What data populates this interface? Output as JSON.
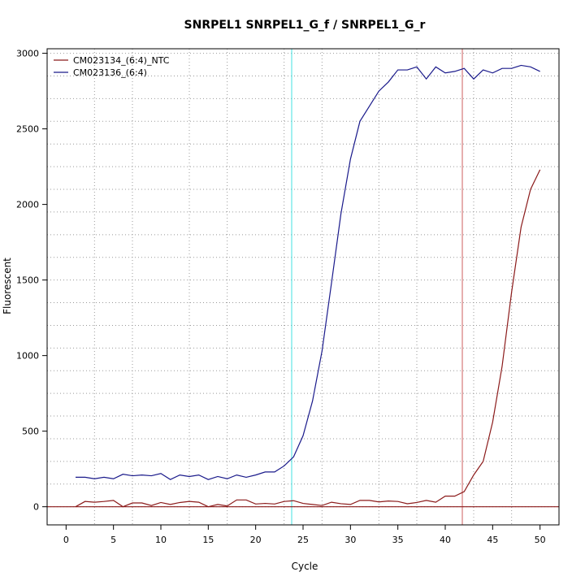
{
  "chart_data": {
    "type": "line",
    "title": "SNRPEL1  SNRPEL1_G_f / SNRPEL1_G_r",
    "xlabel": "Cycle",
    "ylabel": "Fluorescent",
    "xlim": [
      -2,
      52
    ],
    "ylim": [
      -120,
      3030
    ],
    "x_ticks": [
      0,
      5,
      10,
      15,
      20,
      25,
      30,
      35,
      40,
      45,
      50
    ],
    "y_ticks": [
      0,
      500,
      1000,
      1500,
      2000,
      2500,
      3000
    ],
    "x_grid": [
      3,
      7,
      13,
      17,
      23,
      27,
      33,
      37,
      43,
      47
    ],
    "y_grid": [
      0,
      150,
      300,
      450,
      600,
      750,
      900,
      1050,
      1200,
      1350,
      1500,
      1650,
      1800,
      1950,
      2100,
      2250,
      2400,
      2550,
      2700,
      2850,
      3000
    ],
    "grid": true,
    "legend_position": "top-left",
    "threshold": 0,
    "threshold_color": "#8b1a1a",
    "vlines": [
      {
        "x": 23.8,
        "color": "#40e0e0"
      },
      {
        "x": 41.8,
        "color": "#cd5c5c"
      }
    ],
    "x": [
      1,
      2,
      3,
      4,
      5,
      6,
      7,
      8,
      9,
      10,
      11,
      12,
      13,
      14,
      15,
      16,
      17,
      18,
      19,
      20,
      21,
      22,
      23,
      24,
      25,
      26,
      27,
      28,
      29,
      30,
      31,
      32,
      33,
      34,
      35,
      36,
      37,
      38,
      39,
      40,
      41,
      42,
      43,
      44,
      45,
      46,
      47,
      48,
      49,
      50
    ],
    "series": [
      {
        "name": "CM023134_(6:4)_NTC",
        "color": "#8b1a1a",
        "values": [
          0,
          35,
          30,
          35,
          42,
          0,
          25,
          25,
          8,
          28,
          15,
          28,
          35,
          30,
          0,
          15,
          5,
          45,
          45,
          18,
          22,
          18,
          35,
          40,
          22,
          15,
          8,
          30,
          20,
          15,
          42,
          42,
          32,
          38,
          35,
          20,
          28,
          42,
          30,
          70,
          70,
          100,
          210,
          300,
          560,
          930,
          1420,
          1850,
          2100,
          2230
        ]
      },
      {
        "name": "CM023136_(6:4)",
        "color": "#1a1a8b",
        "values": [
          195,
          195,
          185,
          195,
          185,
          215,
          205,
          210,
          205,
          220,
          180,
          210,
          200,
          210,
          180,
          200,
          185,
          210,
          195,
          210,
          230,
          230,
          270,
          330,
          470,
          700,
          1030,
          1480,
          1940,
          2300,
          2550,
          2650,
          2750,
          2810,
          2890,
          2890,
          2910,
          2830,
          2910,
          2870,
          2880,
          2900,
          2830,
          2890,
          2870,
          2900,
          2900,
          2920,
          2910,
          2880
        ]
      }
    ]
  }
}
